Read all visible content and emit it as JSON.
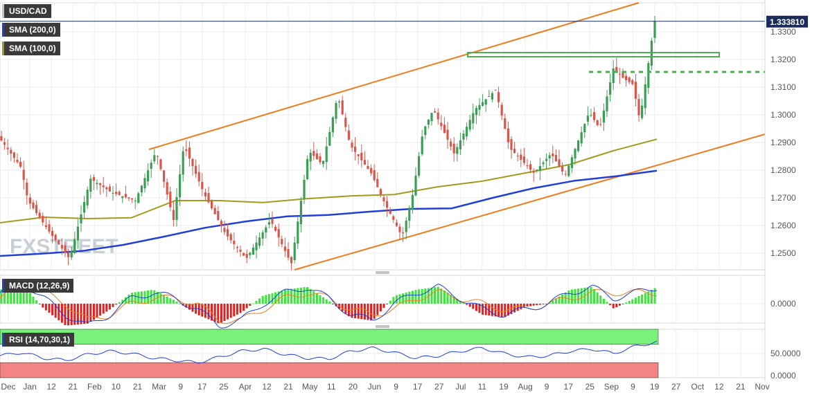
{
  "chart_data": [
    {
      "type": "candlestick",
      "title": "USD/CAD",
      "last_price_label": "1.333810",
      "ylim": [
        1.244,
        1.3405
      ],
      "y_ticks": [
        "1.3300",
        "1.3200",
        "1.3100",
        "1.3000",
        "1.2900",
        "1.2800",
        "1.2700",
        "1.2600",
        "1.2500"
      ],
      "x_ticks": [
        "Dec",
        "Jan",
        "12",
        "21",
        "Feb",
        "10",
        "21",
        "Mar",
        "9",
        "17",
        "25",
        "Apr",
        "12",
        "21",
        "May",
        "11",
        "20",
        "Jun",
        "9",
        "17",
        "27",
        "Jul",
        "11",
        "19",
        "Aug",
        "9",
        "17",
        "25",
        "Sep",
        "9",
        "19",
        "27",
        "Oct",
        "12",
        "21",
        "Nov"
      ],
      "legend": [
        "USD/CAD",
        "SMA (200,0)",
        "SMA (100,0)"
      ],
      "colors": {
        "up": "#3c9e55",
        "down": "#d9564b",
        "sma200": "#1f3fd6",
        "sma100": "#a29a1d",
        "channel": "#ef7c1c",
        "resistance": "#4caf50"
      },
      "series": [
        {
          "name": "SMA (200,0)",
          "values": [
            1.249,
            1.2498,
            1.2508,
            1.253,
            1.256,
            1.2592,
            1.2615,
            1.2633,
            1.2638,
            1.265,
            1.266,
            1.2662,
            1.27,
            1.2735,
            1.2762,
            1.2778,
            1.2798
          ]
        },
        {
          "name": "SMA (100,0)",
          "values": [
            1.261,
            1.263,
            1.2625,
            1.2628,
            1.269,
            1.269,
            1.2683,
            1.2697,
            1.2707,
            1.2712,
            1.274,
            1.276,
            1.279,
            1.282,
            1.287,
            1.2912
          ]
        }
      ],
      "channel_upper": [
        [
          1.2875
        ],
        [
          1.3405
        ]
      ],
      "channel_lower": [
        [
          1.244
        ],
        [
          1.293
        ]
      ],
      "annotations": [
        "resistance zone 1.3210-1.3225",
        "support 1.3155 (dashed)"
      ]
    },
    {
      "type": "histogram",
      "title": "MACD (12,26,9)",
      "y_ticks": [
        "0.0000"
      ],
      "series": [
        {
          "name": "MACD",
          "values": [
            0.002,
            0.004,
            0.001,
            -0.002,
            -0.004,
            -0.002,
            0.001,
            0.002,
            0.001,
            -0.001,
            -0.004,
            -0.003,
            0.0,
            0.002,
            0.003,
            0.001,
            -0.002,
            -0.003,
            0.0,
            0.002,
            0.003,
            0.001,
            -0.001,
            -0.002,
            -0.001,
            0.0,
            0.002,
            0.003,
            0.001,
            0.002,
            0.003
          ]
        },
        {
          "name": "Signal",
          "values": [
            0.001,
            0.003,
            0.002,
            0.0,
            -0.003,
            -0.002,
            0.0,
            0.001,
            0.001,
            0.0,
            -0.003,
            -0.003,
            -0.001,
            0.001,
            0.002,
            0.001,
            -0.001,
            -0.002,
            -0.001,
            0.001,
            0.002,
            0.001,
            0.0,
            -0.001,
            -0.001,
            0.0,
            0.001,
            0.002,
            0.002,
            0.002,
            0.002
          ]
        }
      ]
    },
    {
      "type": "line",
      "title": "RSI (14,70,30,1)",
      "y_ticks": [
        "50.0000",
        "0.0000"
      ],
      "overbought": 70,
      "oversold": 30,
      "series": [
        {
          "name": "RSI",
          "values": [
            45,
            52,
            40,
            35,
            48,
            55,
            50,
            40,
            35,
            30,
            42,
            55,
            60,
            48,
            40,
            38,
            55,
            62,
            52,
            40,
            45,
            55,
            62,
            50,
            42,
            45,
            55,
            60,
            50,
            66,
            75
          ]
        }
      ]
    }
  ],
  "watermark": "FXSTREET"
}
